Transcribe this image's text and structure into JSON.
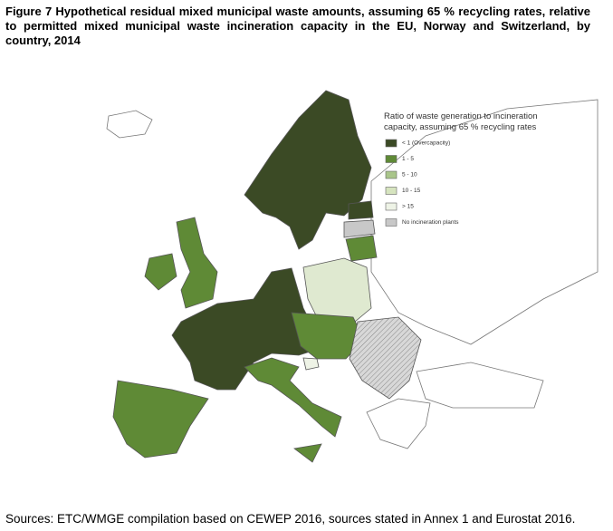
{
  "title": "Figure 7 Hypothetical residual mixed municipal waste amounts, assuming 65 % recycling rates, relative to permitted mixed municipal waste incineration capacity in the EU, Norway and Switzerland, by country, 2014",
  "legend": {
    "title_lines": [
      "Ratio of waste generation to incineration",
      "capacity, assuming 65 % recycling rates"
    ],
    "items": [
      {
        "label": "< 1 (Overcapacity)",
        "color": "#3b4a25"
      },
      {
        "label": "1 - 5",
        "color": "#5f8a36"
      },
      {
        "label": "5 - 10",
        "color": "#a9c58a"
      },
      {
        "label": "10 - 15",
        "color": "#d6e4bf"
      },
      {
        "label": "> 15",
        "color": "#eef3e6"
      },
      {
        "label": "No incineration plants",
        "color": "#c8c8c8"
      }
    ]
  },
  "source": "Sources: ETC/WMGE compilation based on CEWEP 2016, sources stated in Annex 1 and Eurostat 2016."
}
